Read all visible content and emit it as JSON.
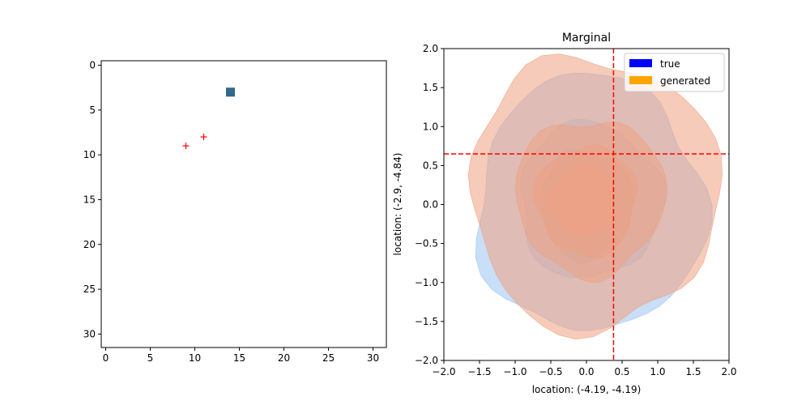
{
  "chart_data": [
    {
      "type": "heatmap",
      "title": "",
      "xlabel": "",
      "ylabel": "",
      "xlim": [
        -0.5,
        31.5
      ],
      "ylim": [
        31.5,
        -0.5
      ],
      "y_inverted": true,
      "xticks": [
        0,
        5,
        10,
        15,
        20,
        25,
        30
      ],
      "yticks": [
        0,
        5,
        10,
        15,
        20,
        25,
        30
      ],
      "cells": [
        {
          "row": 3,
          "col": 14,
          "color": "#31688e"
        }
      ],
      "markers": [
        {
          "x": 9,
          "y": 9,
          "symbol": "+",
          "color": "#ff0000"
        },
        {
          "x": 11,
          "y": 8,
          "symbol": "+",
          "color": "#ff0000"
        }
      ]
    },
    {
      "type": "area",
      "subtype": "kde-contour",
      "title": "Marginal",
      "xlabel": "location: (-4.19, -4.19)",
      "ylabel": "location: (-2.9, -4.84)",
      "xlim": [
        -2.0,
        2.0
      ],
      "ylim": [
        -2.0,
        2.0
      ],
      "xticks": [
        -2.0,
        -1.5,
        -1.0,
        -0.5,
        0.0,
        0.5,
        1.0,
        1.5,
        2.0
      ],
      "yticks": [
        -2.0,
        -1.5,
        -1.0,
        -0.5,
        0.0,
        0.5,
        1.0,
        1.5,
        2.0
      ],
      "legend_position": "top-right",
      "reference_lines": {
        "x": 0.38,
        "y": 0.65,
        "color": "#ff0000",
        "style": "dashed"
      },
      "series": [
        {
          "name": "true",
          "legend_color": "#0000ff",
          "fill_color": "#9cc3f0",
          "levels": [
            {
              "center": [
                0.05,
                0.0
              ],
              "rx": 1.6,
              "ry": 1.65,
              "opacity": 0.55
            },
            {
              "center": [
                0.05,
                0.05
              ],
              "rx": 1.0,
              "ry": 1.0,
              "opacity": 0.5
            },
            {
              "center": [
                0.0,
                0.0
              ],
              "rx": 0.65,
              "ry": 0.7,
              "opacity": 0.5
            },
            {
              "center": [
                -0.05,
                0.05
              ],
              "rx": 0.4,
              "ry": 0.45,
              "opacity": 0.5
            }
          ]
        },
        {
          "name": "generated",
          "legend_color": "#ffa500",
          "fill_color": "#f0a080",
          "levels": [
            {
              "center": [
                0.1,
                0.15
              ],
              "rx": 1.75,
              "ry": 1.75,
              "opacity": 0.55
            },
            {
              "center": [
                0.05,
                0.1
              ],
              "rx": 1.05,
              "ry": 1.0,
              "opacity": 0.5
            },
            {
              "center": [
                0.0,
                0.05
              ],
              "rx": 0.7,
              "ry": 0.7,
              "opacity": 0.5
            },
            {
              "center": [
                -0.05,
                0.05
              ],
              "rx": 0.45,
              "ry": 0.45,
              "opacity": 0.5
            }
          ]
        }
      ]
    }
  ]
}
